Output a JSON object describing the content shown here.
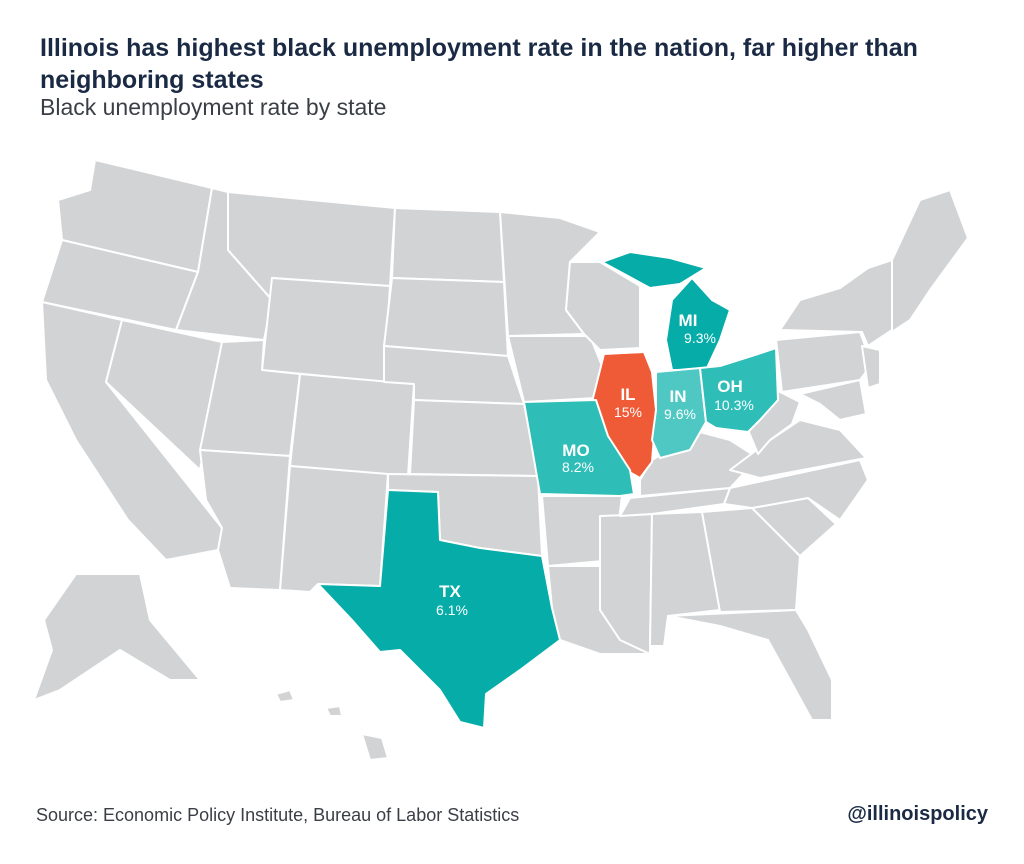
{
  "title": "Illinois has highest black unemployment rate in the nation, far higher than neighboring states",
  "subtitle": "Black unemployment rate by state",
  "source": "Source: Economic Policy Institute, Bureau of Labor Statistics",
  "handle": "@illinoispolicy",
  "colors": {
    "base_state": "#d1d3d5",
    "border": "#ffffff",
    "highest": "#ef5b36",
    "teal": "#05aca8",
    "teal_light": "#4fc8c3"
  },
  "highlighted_states": [
    {
      "abbr": "IL",
      "value": "15%",
      "color": "#ef5b36"
    },
    {
      "abbr": "MI",
      "value": "9.3%",
      "color": "#05aca8"
    },
    {
      "abbr": "IN",
      "value": "9.6%",
      "color": "#4fc8c3"
    },
    {
      "abbr": "OH",
      "value": "10.3%",
      "color": "#2fbdb8"
    },
    {
      "abbr": "MO",
      "value": "8.2%",
      "color": "#2fbdb8"
    },
    {
      "abbr": "TX",
      "value": "6.1%",
      "color": "#05aca8"
    }
  ]
}
